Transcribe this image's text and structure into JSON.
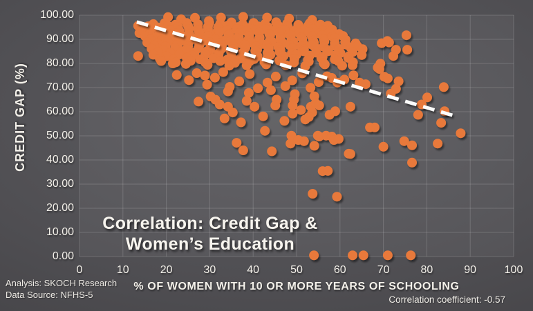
{
  "chart_data": {
    "type": "scatter",
    "title": "Correlation: Credit Gap & Women's Education",
    "annotation": {
      "line1": "Correlation: Credit Gap &",
      "line2": "Women’s Education"
    },
    "xlabel": "% OF  WOMEN WITH 10 OR MORE YEARS OF SCHOOLING",
    "ylabel": "CREDIT GAP (%)",
    "xlim": [
      0,
      100
    ],
    "ylim": [
      0,
      100
    ],
    "grid": true,
    "legend": "none",
    "x_ticks": [
      "0",
      "10",
      "20",
      "30",
      "40",
      "50",
      "60",
      "70",
      "80",
      "90",
      "100"
    ],
    "y_ticks": [
      "100.00",
      "90.00",
      "80.00",
      "70.00",
      "60.00",
      "50.00",
      "40.00",
      "30.00",
      "20.00",
      "10.00",
      "0.00"
    ],
    "point_color": "#E8793A",
    "grid_color": "rgba(255,255,255,0.16)",
    "trendline": {
      "style": "dashed",
      "color": "#FDFDFC",
      "x1": 13.2,
      "y1": 97.2,
      "x2": 87.3,
      "y2": 57.8
    },
    "points": [
      [
        20.4,
        99.2
      ],
      [
        23.4,
        98.3
      ],
      [
        26.6,
        98.9
      ],
      [
        29.8,
        97.6
      ],
      [
        32.6,
        99.0
      ],
      [
        37.7,
        99.3
      ],
      [
        43.2,
        99.0
      ],
      [
        48.3,
        98.6
      ],
      [
        53.6,
        98.0
      ],
      [
        17.0,
        96.3
      ],
      [
        19.6,
        96.7
      ],
      [
        22.1,
        96.1
      ],
      [
        24.7,
        96.8
      ],
      [
        27.3,
        96.2
      ],
      [
        29.9,
        96.9
      ],
      [
        32.4,
        96.4
      ],
      [
        35.0,
        97.0
      ],
      [
        37.6,
        96.2
      ],
      [
        40.1,
        96.8
      ],
      [
        42.7,
        96.3
      ],
      [
        45.3,
        97.1
      ],
      [
        47.8,
        96.5
      ],
      [
        50.4,
        96.0
      ],
      [
        53.0,
        96.6
      ],
      [
        55.5,
        96.1
      ],
      [
        13.5,
        95.6
      ],
      [
        15.8,
        95.4
      ],
      [
        18.1,
        94.9
      ],
      [
        20.4,
        95.5
      ],
      [
        22.7,
        95.0
      ],
      [
        25.0,
        95.6
      ],
      [
        27.3,
        94.8
      ],
      [
        29.6,
        95.3
      ],
      [
        31.9,
        94.9
      ],
      [
        34.2,
        95.7
      ],
      [
        36.5,
        95.1
      ],
      [
        38.8,
        94.7
      ],
      [
        41.1,
        95.4
      ],
      [
        43.4,
        95.0
      ],
      [
        45.7,
        95.8
      ],
      [
        48.0,
        95.2
      ],
      [
        50.3,
        94.8
      ],
      [
        52.6,
        95.5
      ],
      [
        54.9,
        95.0
      ],
      [
        57.2,
        95.6
      ],
      [
        14.2,
        93.9
      ],
      [
        16.4,
        94.2
      ],
      [
        18.6,
        93.6
      ],
      [
        20.8,
        94.0
      ],
      [
        23.0,
        93.5
      ],
      [
        25.2,
        94.3
      ],
      [
        27.4,
        93.7
      ],
      [
        29.6,
        94.1
      ],
      [
        31.8,
        93.4
      ],
      [
        34.0,
        93.8
      ],
      [
        36.2,
        94.2
      ],
      [
        38.4,
        93.5
      ],
      [
        40.6,
        93.9
      ],
      [
        42.8,
        94.3
      ],
      [
        45.0,
        93.6
      ],
      [
        47.2,
        94.0
      ],
      [
        49.4,
        93.4
      ],
      [
        51.6,
        93.8
      ],
      [
        53.8,
        94.2
      ],
      [
        56.0,
        93.6
      ],
      [
        58.2,
        94.0
      ],
      [
        13.8,
        92.6
      ],
      [
        16.1,
        92.2
      ],
      [
        18.4,
        92.9
      ],
      [
        20.7,
        92.3
      ],
      [
        23.0,
        92.8
      ],
      [
        25.3,
        92.1
      ],
      [
        27.6,
        92.7
      ],
      [
        29.9,
        92.4
      ],
      [
        32.2,
        93.0
      ],
      [
        34.5,
        92.2
      ],
      [
        36.8,
        92.6
      ],
      [
        39.1,
        92.0
      ],
      [
        41.4,
        92.8
      ],
      [
        43.7,
        92.3
      ],
      [
        46.0,
        92.9
      ],
      [
        48.3,
        92.1
      ],
      [
        50.6,
        92.5
      ],
      [
        52.9,
        93.0
      ],
      [
        55.2,
        92.4
      ],
      [
        57.5,
        92.8
      ],
      [
        59.8,
        92.2
      ],
      [
        15.1,
        91.3
      ],
      [
        17.5,
        90.9
      ],
      [
        19.9,
        91.6
      ],
      [
        22.3,
        91.0
      ],
      [
        24.7,
        91.5
      ],
      [
        27.1,
        90.8
      ],
      [
        29.5,
        91.4
      ],
      [
        31.9,
        91.1
      ],
      [
        34.3,
        91.7
      ],
      [
        36.7,
        90.9
      ],
      [
        39.1,
        91.3
      ],
      [
        41.5,
        90.7
      ],
      [
        43.9,
        91.5
      ],
      [
        46.3,
        91.0
      ],
      [
        48.7,
        91.6
      ],
      [
        51.1,
        90.8
      ],
      [
        53.5,
        91.2
      ],
      [
        55.9,
        91.7
      ],
      [
        58.3,
        91.1
      ],
      [
        60.7,
        91.4
      ],
      [
        16.3,
        90.0
      ],
      [
        18.8,
        89.6
      ],
      [
        21.3,
        90.3
      ],
      [
        23.8,
        89.7
      ],
      [
        26.3,
        90.2
      ],
      [
        28.8,
        89.5
      ],
      [
        31.3,
        90.1
      ],
      [
        33.8,
        89.8
      ],
      [
        36.3,
        90.4
      ],
      [
        38.8,
        89.6
      ],
      [
        41.3,
        90.0
      ],
      [
        43.8,
        89.4
      ],
      [
        46.3,
        90.2
      ],
      [
        48.8,
        89.7
      ],
      [
        51.3,
        90.3
      ],
      [
        53.8,
        89.5
      ],
      [
        56.3,
        89.9
      ],
      [
        58.8,
        90.4
      ],
      [
        61.3,
        89.8
      ],
      [
        15.6,
        88.7
      ],
      [
        18.0,
        88.3
      ],
      [
        20.4,
        89.0
      ],
      [
        22.8,
        88.4
      ],
      [
        25.2,
        88.9
      ],
      [
        27.6,
        88.2
      ],
      [
        30.0,
        88.8
      ],
      [
        32.4,
        88.5
      ],
      [
        34.8,
        89.1
      ],
      [
        37.2,
        88.3
      ],
      [
        39.6,
        88.7
      ],
      [
        42.0,
        88.1
      ],
      [
        44.4,
        88.9
      ],
      [
        46.8,
        88.4
      ],
      [
        49.2,
        89.0
      ],
      [
        51.6,
        88.2
      ],
      [
        54.0,
        88.6
      ],
      [
        56.4,
        89.1
      ],
      [
        58.8,
        88.5
      ],
      [
        61.2,
        88.9
      ],
      [
        63.6,
        88.3
      ],
      [
        17.2,
        87.4
      ],
      [
        19.8,
        87.0
      ],
      [
        22.4,
        87.7
      ],
      [
        25.0,
        87.1
      ],
      [
        27.6,
        87.6
      ],
      [
        30.2,
        86.9
      ],
      [
        32.8,
        87.5
      ],
      [
        35.4,
        87.2
      ],
      [
        38.0,
        87.8
      ],
      [
        40.6,
        87.0
      ],
      [
        43.2,
        87.4
      ],
      [
        45.8,
        86.8
      ],
      [
        48.4,
        87.6
      ],
      [
        51.0,
        87.1
      ],
      [
        53.6,
        87.7
      ],
      [
        56.2,
        86.9
      ],
      [
        58.8,
        87.3
      ],
      [
        61.4,
        87.8
      ],
      [
        64.0,
        87.2
      ],
      [
        16.6,
        86.1
      ],
      [
        19.3,
        85.7
      ],
      [
        22.0,
        86.4
      ],
      [
        24.7,
        85.8
      ],
      [
        27.4,
        86.3
      ],
      [
        30.1,
        85.6
      ],
      [
        32.8,
        86.2
      ],
      [
        35.5,
        85.9
      ],
      [
        38.2,
        86.5
      ],
      [
        40.9,
        85.7
      ],
      [
        43.6,
        86.1
      ],
      [
        46.3,
        85.5
      ],
      [
        49.0,
        86.3
      ],
      [
        51.7,
        85.8
      ],
      [
        54.4,
        86.4
      ],
      [
        57.1,
        85.6
      ],
      [
        59.8,
        86.0
      ],
      [
        62.5,
        86.5
      ],
      [
        65.2,
        85.9
      ],
      [
        18.1,
        84.8
      ],
      [
        20.9,
        84.4
      ],
      [
        23.7,
        85.1
      ],
      [
        26.5,
        84.5
      ],
      [
        29.3,
        85.0
      ],
      [
        32.1,
        84.3
      ],
      [
        34.9,
        84.9
      ],
      [
        37.7,
        84.6
      ],
      [
        40.5,
        85.2
      ],
      [
        43.3,
        84.4
      ],
      [
        46.1,
        84.8
      ],
      [
        48.9,
        84.2
      ],
      [
        51.7,
        85.0
      ],
      [
        54.5,
        84.5
      ],
      [
        57.3,
        85.1
      ],
      [
        60.1,
        84.3
      ],
      [
        62.9,
        84.7
      ],
      [
        13.5,
        83.1
      ],
      [
        17.0,
        83.6
      ],
      [
        20.0,
        83.0
      ],
      [
        23.0,
        83.7
      ],
      [
        26.0,
        83.2
      ],
      [
        29.0,
        83.8
      ],
      [
        32.0,
        83.3
      ],
      [
        35.0,
        82.9
      ],
      [
        38.0,
        83.5
      ],
      [
        41.0,
        83.0
      ],
      [
        44.0,
        83.6
      ],
      [
        47.0,
        83.1
      ],
      [
        50.0,
        83.7
      ],
      [
        53.0,
        83.2
      ],
      [
        56.0,
        82.8
      ],
      [
        59.0,
        83.4
      ],
      [
        62.0,
        82.9
      ],
      [
        65.0,
        83.5
      ],
      [
        18.5,
        82.0
      ],
      [
        21.6,
        81.6
      ],
      [
        24.7,
        82.3
      ],
      [
        27.8,
        81.7
      ],
      [
        30.9,
        82.2
      ],
      [
        34.0,
        81.5
      ],
      [
        37.1,
        82.1
      ],
      [
        40.2,
        81.8
      ],
      [
        43.3,
        82.4
      ],
      [
        46.4,
        81.6
      ],
      [
        49.5,
        82.0
      ],
      [
        52.6,
        81.4
      ],
      [
        55.7,
        82.2
      ],
      [
        58.8,
        81.7
      ],
      [
        61.9,
        82.3
      ],
      [
        18.8,
        81.0
      ],
      [
        22.2,
        80.5
      ],
      [
        25.6,
        81.1
      ],
      [
        29.0,
        80.4
      ],
      [
        32.4,
        81.0
      ],
      [
        35.8,
        80.3
      ],
      [
        39.2,
        80.9
      ],
      [
        42.6,
        80.6
      ],
      [
        46.0,
        81.2
      ],
      [
        49.4,
        80.4
      ],
      [
        52.8,
        80.8
      ],
      [
        56.2,
        80.2
      ],
      [
        59.6,
        81.0
      ],
      [
        63.0,
        80.5
      ],
      [
        21.5,
        80.0
      ],
      [
        24.5,
        79.8
      ],
      [
        29.5,
        79.4
      ],
      [
        34.5,
        79.1
      ],
      [
        38.5,
        79.2
      ],
      [
        43.0,
        79.6
      ],
      [
        47.5,
        79.3
      ],
      [
        52.0,
        78.9
      ],
      [
        56.5,
        79.6
      ],
      [
        60.5,
        79.1
      ],
      [
        62.9,
        79.3
      ],
      [
        69.3,
        79.9
      ],
      [
        68.7,
        78.3
      ],
      [
        69.6,
        88.4
      ],
      [
        70.9,
        89.3
      ],
      [
        71.3,
        88.7
      ],
      [
        72.9,
        85.7
      ],
      [
        75.3,
        91.7
      ],
      [
        75.5,
        85.7
      ],
      [
        72.3,
        83.1
      ],
      [
        22.4,
        75.2
      ],
      [
        25.2,
        73.1
      ],
      [
        27.0,
        76.0
      ],
      [
        28.9,
        75.0
      ],
      [
        29.4,
        71.2
      ],
      [
        31.2,
        74.1
      ],
      [
        33.1,
        76.4
      ],
      [
        34.6,
        70.3
      ],
      [
        36.8,
        72.6
      ],
      [
        39.2,
        75.6
      ],
      [
        41.1,
        69.7
      ],
      [
        43.3,
        72.1
      ],
      [
        45.2,
        74.6
      ],
      [
        47.4,
        70.6
      ],
      [
        49.0,
        73.0
      ],
      [
        51.3,
        75.9
      ],
      [
        53.2,
        69.9
      ],
      [
        55.1,
        72.3
      ],
      [
        57.0,
        74.7
      ],
      [
        58.1,
        74.0
      ],
      [
        59.4,
        72.1
      ],
      [
        61.0,
        73.3
      ],
      [
        63.1,
        75.1
      ],
      [
        64.5,
        72.1
      ],
      [
        65.9,
        71.4
      ],
      [
        70.2,
        74.5
      ],
      [
        71.0,
        73.8
      ],
      [
        73.5,
        72.6
      ],
      [
        72.9,
        69.5
      ],
      [
        71.7,
        67.5
      ],
      [
        83.9,
        70.2
      ],
      [
        34.2,
        68.4
      ],
      [
        39.0,
        67.8
      ],
      [
        44.1,
        68.9
      ],
      [
        54.1,
        66.4
      ],
      [
        49.6,
        67.3
      ],
      [
        69.1,
        77.7
      ],
      [
        31.3,
        65.0
      ],
      [
        32.3,
        63.0
      ],
      [
        34.2,
        62.1
      ],
      [
        35.3,
        59.7
      ],
      [
        38.5,
        64.5
      ],
      [
        40.3,
        62.1
      ],
      [
        45.4,
        65.0
      ],
      [
        45.1,
        62.6
      ],
      [
        49.4,
        65.0
      ],
      [
        49.1,
        62.6
      ],
      [
        49.1,
        59.2
      ],
      [
        51.0,
        60.7
      ],
      [
        52.0,
        56.8
      ],
      [
        53.3,
        62.1
      ],
      [
        53.6,
        59.7
      ],
      [
        54.4,
        63.5
      ],
      [
        55.2,
        62.6
      ],
      [
        57.6,
        58.7
      ],
      [
        58.9,
        60.2
      ],
      [
        62.4,
        62.1
      ],
      [
        33.4,
        57.2
      ],
      [
        37.2,
        55.6
      ],
      [
        42.3,
        58.1
      ],
      [
        47.2,
        56.2
      ],
      [
        80.1,
        65.9
      ],
      [
        78.8,
        63.0
      ],
      [
        78.0,
        58.7
      ],
      [
        84.1,
        60.2
      ],
      [
        83.3,
        55.4
      ],
      [
        68.0,
        53.5
      ],
      [
        30.2,
        66.3
      ],
      [
        27.4,
        64.2
      ],
      [
        52.8,
        57.8
      ],
      [
        66.9,
        53.5
      ],
      [
        42.7,
        52.1
      ],
      [
        48.8,
        50.1
      ],
      [
        48.6,
        46.8
      ],
      [
        50.4,
        48.3
      ],
      [
        51.7,
        47.8
      ],
      [
        54.1,
        45.9
      ],
      [
        55.2,
        49.7
      ],
      [
        56.8,
        50.1
      ],
      [
        58.1,
        49.7
      ],
      [
        58.6,
        48.3
      ],
      [
        59.7,
        48.7
      ],
      [
        37.7,
        44.0
      ],
      [
        62.4,
        42.5
      ],
      [
        87.8,
        51.1
      ],
      [
        74.8,
        47.8
      ],
      [
        70.0,
        45.5
      ],
      [
        62.0,
        42.6
      ],
      [
        76.6,
        46.1
      ],
      [
        82.5,
        46.8
      ],
      [
        36.2,
        47.1
      ],
      [
        44.3,
        43.6
      ],
      [
        54.9,
        50.1
      ],
      [
        76.6,
        38.9
      ],
      [
        56.0,
        35.4
      ],
      [
        57.2,
        35.5
      ],
      [
        53.7,
        26.0
      ],
      [
        59.3,
        24.8
      ],
      [
        54.0,
        0.5
      ],
      [
        62.9,
        0.5
      ],
      [
        65.4,
        0.5
      ],
      [
        71.0,
        0.5
      ],
      [
        76.3,
        0.5
      ]
    ]
  },
  "footer": {
    "analysis": "Analysis: SKOCH Research",
    "source": "Data Source: NFHS-5",
    "correlation": "Correlation coefficient: -0.57"
  }
}
